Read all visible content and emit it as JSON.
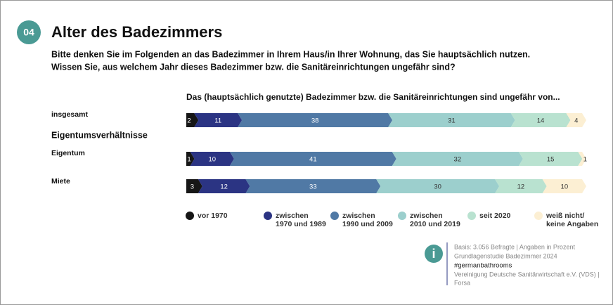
{
  "chart_data": {
    "type": "stacked-bar-horizontal",
    "badge": "04",
    "title": "Alter des Badezimmers",
    "subtitle": [
      "Bitte denken Sie im Folgenden an das Badezimmer in Ihrem Haus/in Ihrer Wohnung, das Sie hauptsächlich nutzen.",
      "Wissen Sie, aus welchem Jahr dieses Badezimmer bzw. die Sanitäreinrichtungen ungefähr sind?"
    ],
    "chart_heading": "Das (hauptsächlich genutzte) Badezimmer bzw. die Sanitäreinrichtungen sind ungefähr von...",
    "group_label": "Eigentumsverhältnisse",
    "categories": [
      "insgesamt",
      "Eigentum",
      "Miete"
    ],
    "xlim": [
      0,
      100
    ],
    "series": [
      {
        "name": "vor 1970",
        "color": "#161616",
        "values": [
          2,
          1,
          3
        ]
      },
      {
        "name": "zwischen\n1970 und 1989",
        "color": "#2b3483",
        "values": [
          11,
          10,
          12
        ]
      },
      {
        "name": "zwischen\n1990 und 2009",
        "color": "#5079a5",
        "values": [
          38,
          41,
          33
        ]
      },
      {
        "name": "zwischen\n2010 und 2019",
        "color": "#9ccfcd",
        "values": [
          31,
          32,
          30
        ]
      },
      {
        "name": "seit 2020",
        "color": "#b9e2d0",
        "values": [
          14,
          15,
          12
        ]
      },
      {
        "name": "weiß nicht/\nkeine Angaben",
        "color": "#fcefd3",
        "values": [
          4,
          1,
          10
        ]
      }
    ],
    "notes": [
      "Basis: 3.056 Befragte | Angaben in Prozent",
      "Grundlagenstudie Badezimmer 2024",
      "#germanbathrooms",
      "Vereinigung Deutsche Sanitärwirtschaft e.V. (VDS) |",
      "Forsa"
    ]
  }
}
